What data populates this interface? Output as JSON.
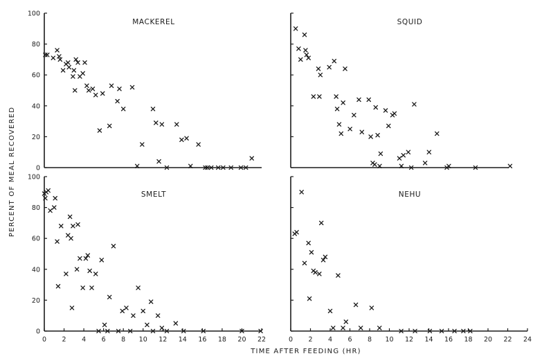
{
  "axes": {
    "xlabel": "TIME  AFTER  FEEDING  (HR)",
    "ylabel": "PERCENT OF MEAL RECOVERED"
  },
  "chart_data": [
    {
      "type": "scatter",
      "title": "MACKEREL",
      "xlim": [
        0,
        22
      ],
      "ylim": [
        0,
        100
      ],
      "xticks": [
        0,
        2,
        4,
        6,
        8,
        10,
        12,
        14,
        16,
        18,
        20,
        22
      ],
      "yticks": [
        0,
        20,
        40,
        60,
        80,
        100
      ],
      "marker": "x",
      "x": [
        0.1,
        0.3,
        0.9,
        1.3,
        1.5,
        1.6,
        1.9,
        2.2,
        2.4,
        2.5,
        2.9,
        3.0,
        3.1,
        3.2,
        3.4,
        3.6,
        3.9,
        4.1,
        4.3,
        4.5,
        4.9,
        5.2,
        5.6,
        5.9,
        6.6,
        6.8,
        7.4,
        7.6,
        8.0,
        8.9,
        9.4,
        9.9,
        11.0,
        11.3,
        11.6,
        11.9,
        12.4,
        13.4,
        13.9,
        14.4,
        14.8,
        15.6,
        16.3,
        16.5,
        16.9,
        17.6,
        18.1,
        18.9,
        19.9,
        20.4,
        21.0
      ],
      "y": [
        73,
        73,
        71,
        76,
        72,
        70,
        63,
        67,
        68,
        65,
        59,
        63,
        50,
        70,
        68,
        59,
        61,
        68,
        53,
        50,
        51,
        47,
        24,
        48,
        27,
        53,
        43,
        51,
        38,
        52,
        1,
        15,
        38,
        29,
        4,
        28,
        0,
        28,
        18,
        19,
        1,
        15,
        0,
        0,
        0,
        0,
        0,
        0,
        0,
        0,
        6
      ]
    },
    {
      "type": "scatter",
      "title": "SQUID",
      "xlim": [
        0,
        22
      ],
      "ylim": [
        0,
        100
      ],
      "xticks": [
        0,
        2,
        4,
        6,
        8,
        10,
        12,
        14,
        16,
        18,
        20,
        22
      ],
      "yticks": [
        0,
        20,
        40,
        60,
        80,
        100
      ],
      "marker": "x",
      "x": [
        0.5,
        0.8,
        1.0,
        1.4,
        1.5,
        1.6,
        1.8,
        2.3,
        2.8,
        2.9,
        3.0,
        3.9,
        4.4,
        4.6,
        4.7,
        4.9,
        5.1,
        5.3,
        5.5,
        6.0,
        6.4,
        6.9,
        7.2,
        7.9,
        8.1,
        8.3,
        8.5,
        8.6,
        8.8,
        9.0,
        9.1,
        9.6,
        9.9,
        10.3,
        10.5,
        11.0,
        11.2,
        11.4,
        11.9,
        12.2,
        12.5,
        13.6,
        14.0,
        14.8,
        15.8,
        16.0,
        18.7,
        22.2
      ],
      "y": [
        90,
        77,
        70,
        86,
        76,
        73,
        71,
        46,
        64,
        46,
        60,
        65,
        69,
        46,
        38,
        28,
        22,
        42,
        64,
        25,
        34,
        44,
        23,
        44,
        20,
        3,
        2,
        39,
        21,
        1,
        9,
        37,
        27,
        34,
        35,
        6,
        1,
        8,
        10,
        0,
        41,
        3,
        10,
        22,
        0,
        1,
        0,
        1
      ]
    },
    {
      "type": "scatter",
      "title": "SMELT",
      "xlim": [
        0,
        22
      ],
      "ylim": [
        0,
        100
      ],
      "xticks": [
        0,
        2,
        4,
        6,
        8,
        10,
        12,
        14,
        16,
        18,
        20,
        22
      ],
      "yticks": [
        0,
        20,
        40,
        60,
        80,
        100
      ],
      "marker": "x",
      "x": [
        0.0,
        0.1,
        0.2,
        0.4,
        0.6,
        1.0,
        1.1,
        1.3,
        1.4,
        1.7,
        2.2,
        2.4,
        2.6,
        2.7,
        2.8,
        2.9,
        3.3,
        3.4,
        3.6,
        3.9,
        4.2,
        4.4,
        4.6,
        4.8,
        5.2,
        5.5,
        5.8,
        6.1,
        6.4,
        6.6,
        7.0,
        7.5,
        7.9,
        8.3,
        8.7,
        9.0,
        9.5,
        10.0,
        10.4,
        10.8,
        11.0,
        11.5,
        11.9,
        12.4,
        13.3,
        14.1,
        16.1,
        20.0,
        21.9
      ],
      "y": [
        89,
        86,
        90,
        91,
        78,
        80,
        86,
        58,
        29,
        68,
        37,
        62,
        74,
        60,
        15,
        68,
        40,
        69,
        47,
        28,
        47,
        49,
        39,
        28,
        37,
        0,
        46,
        4,
        0,
        22,
        55,
        0,
        13,
        15,
        0,
        10,
        28,
        13,
        4,
        19,
        0,
        10,
        2,
        0,
        5,
        0,
        0,
        0,
        0
      ]
    },
    {
      "type": "scatter",
      "title": "NEHU",
      "xlim": [
        0,
        24
      ],
      "ylim": [
        0,
        100
      ],
      "xticks": [
        0,
        2,
        4,
        6,
        8,
        10,
        12,
        14,
        16,
        18,
        20,
        22,
        24
      ],
      "yticks": [
        0,
        20,
        40,
        60,
        80,
        100
      ],
      "marker": "x",
      "x": [
        0.4,
        0.6,
        1.1,
        1.4,
        1.8,
        1.9,
        2.1,
        2.3,
        2.5,
        2.9,
        3.1,
        3.3,
        3.5,
        4.0,
        4.3,
        4.8,
        5.3,
        5.6,
        6.6,
        7.1,
        8.2,
        9.0,
        11.2,
        12.6,
        14.1,
        15.3,
        16.6,
        17.5,
        18.2
      ],
      "y": [
        63,
        64,
        90,
        44,
        57,
        21,
        51,
        39,
        38,
        37,
        70,
        46,
        48,
        13,
        2,
        36,
        2,
        6,
        17,
        2,
        15,
        2,
        0,
        0,
        0,
        0,
        0,
        0,
        0
      ]
    }
  ]
}
